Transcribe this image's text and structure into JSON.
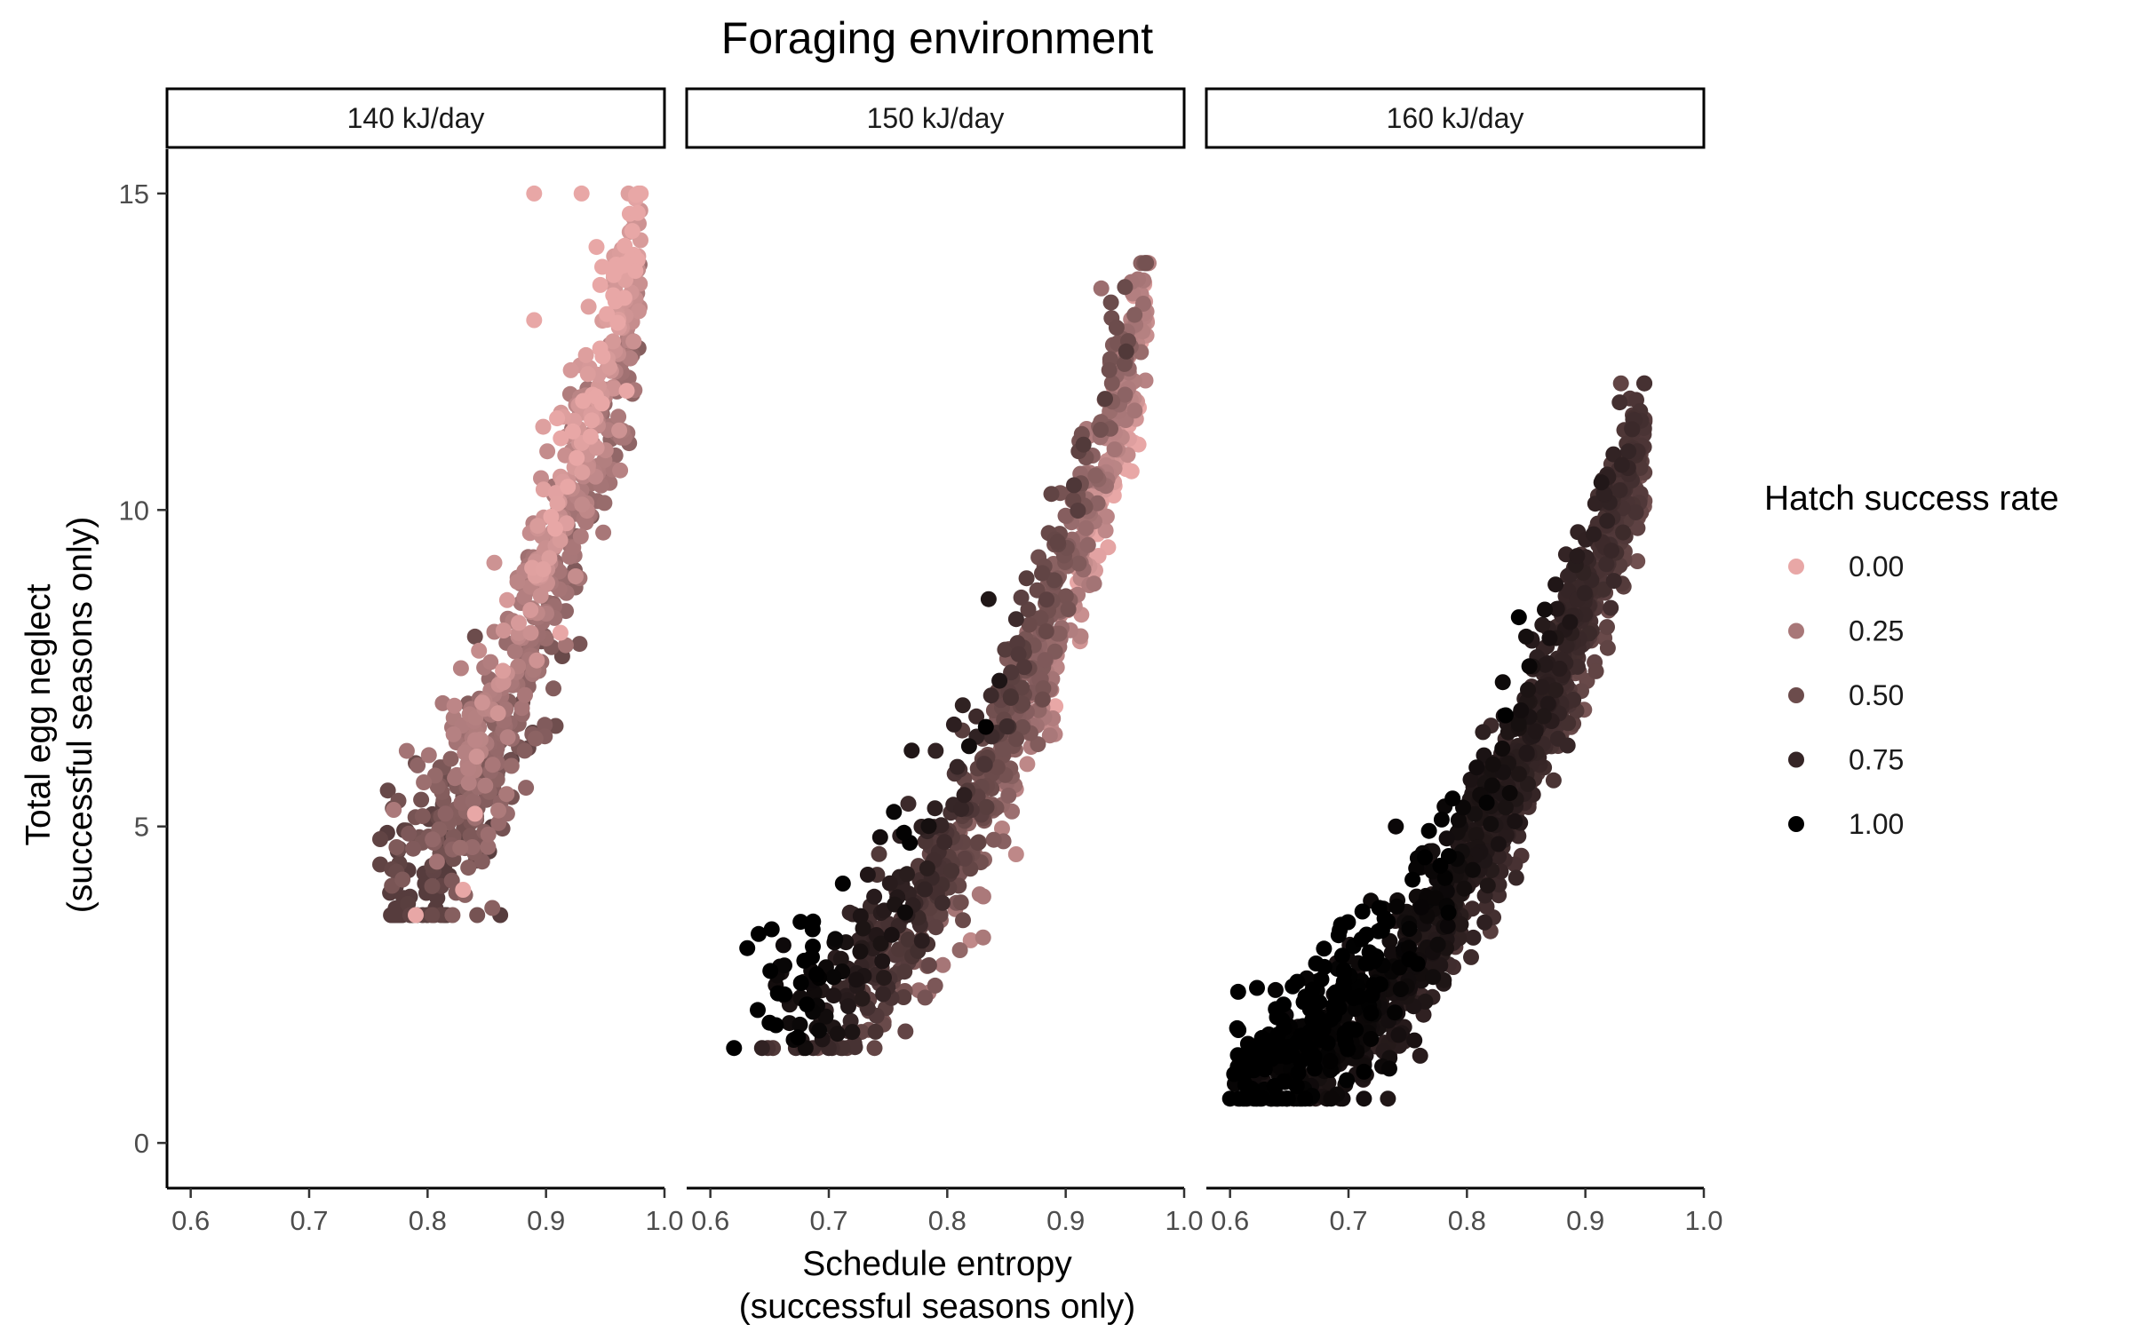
{
  "chart_data": {
    "type": "scatter",
    "title": "Foraging environment",
    "xlabel": [
      "Schedule entropy",
      "(successful seasons only)"
    ],
    "ylabel": [
      "Total egg neglect",
      "(successful seasons only)"
    ],
    "xlim": [
      0.58,
      1.0
    ],
    "ylim": [
      -0.7,
      15.7
    ],
    "x_ticks": [
      0.6,
      0.7,
      0.8,
      0.9,
      1.0
    ],
    "x_tick_labels": [
      "0.6",
      "0.7",
      "0.8",
      "0.9",
      "1.0"
    ],
    "y_ticks": [
      0,
      5,
      10,
      15
    ],
    "y_tick_labels": [
      "0",
      "5",
      "10",
      "15"
    ],
    "grid": false,
    "color_scale": {
      "title": "Hatch success rate",
      "placement": "right",
      "stops": [
        {
          "value": 0.0,
          "label": "0.00",
          "color": "#e8a7a6"
        },
        {
          "value": 0.25,
          "label": "0.25",
          "color": "#a87778"
        },
        {
          "value": 0.5,
          "label": "0.50",
          "color": "#6c4c4c"
        },
        {
          "value": 0.75,
          "label": "0.75",
          "color": "#352526"
        },
        {
          "value": 1.0,
          "label": "1.00",
          "color": "#000000"
        }
      ]
    },
    "panels": [
      {
        "facet": "140 kJ/day",
        "n_points": 700,
        "x_range": [
          0.76,
          0.98
        ],
        "y_range": [
          3.6,
          15.0
        ],
        "hatch_success_range": [
          0.0,
          0.6
        ],
        "sample_points": [
          {
            "x": 0.89,
            "y": 15.0,
            "hatch": 0.0
          },
          {
            "x": 0.93,
            "y": 15.0,
            "hatch": 0.0
          },
          {
            "x": 0.98,
            "y": 15.0,
            "hatch": 0.0
          },
          {
            "x": 0.89,
            "y": 13.0,
            "hatch": 0.0
          },
          {
            "x": 0.79,
            "y": 3.6,
            "hatch": 0.0
          },
          {
            "x": 0.76,
            "y": 4.4,
            "hatch": 0.55
          },
          {
            "x": 0.76,
            "y": 4.8,
            "hatch": 0.55
          },
          {
            "x": 0.84,
            "y": 5.2,
            "hatch": 0.0
          },
          {
            "x": 0.83,
            "y": 4.0,
            "hatch": 0.0
          },
          {
            "x": 0.79,
            "y": 6.0,
            "hatch": 0.5
          },
          {
            "x": 0.84,
            "y": 8.0,
            "hatch": 0.5
          }
        ]
      },
      {
        "facet": "150 kJ/day",
        "n_points": 900,
        "x_range": [
          0.62,
          0.97
        ],
        "y_range": [
          1.5,
          13.9
        ],
        "hatch_success_range": [
          0.0,
          1.0
        ],
        "sample_points": [
          {
            "x": 0.62,
            "y": 1.5,
            "hatch": 1.0
          },
          {
            "x": 0.64,
            "y": 2.1,
            "hatch": 1.0
          },
          {
            "x": 0.65,
            "y": 1.9,
            "hatch": 1.0
          },
          {
            "x": 0.97,
            "y": 13.9,
            "hatch": 0.2
          },
          {
            "x": 0.93,
            "y": 13.5,
            "hatch": 0.3
          },
          {
            "x": 0.77,
            "y": 6.2,
            "hatch": 0.85
          },
          {
            "x": 0.88,
            "y": 9.0,
            "hatch": 0.55
          }
        ]
      },
      {
        "facet": "160 kJ/day",
        "n_points": 1300,
        "x_range": [
          0.6,
          0.95
        ],
        "y_range": [
          0.7,
          12.0
        ],
        "hatch_success_range": [
          0.45,
          1.0
        ],
        "sample_points": [
          {
            "x": 0.6,
            "y": 0.7,
            "hatch": 1.0
          },
          {
            "x": 0.93,
            "y": 12.0,
            "hatch": 0.55
          },
          {
            "x": 0.94,
            "y": 11.5,
            "hatch": 0.6
          },
          {
            "x": 0.95,
            "y": 11.4,
            "hatch": 0.6
          },
          {
            "x": 0.74,
            "y": 5.0,
            "hatch": 0.95
          },
          {
            "x": 0.85,
            "y": 8.0,
            "hatch": 0.9
          }
        ]
      }
    ]
  }
}
